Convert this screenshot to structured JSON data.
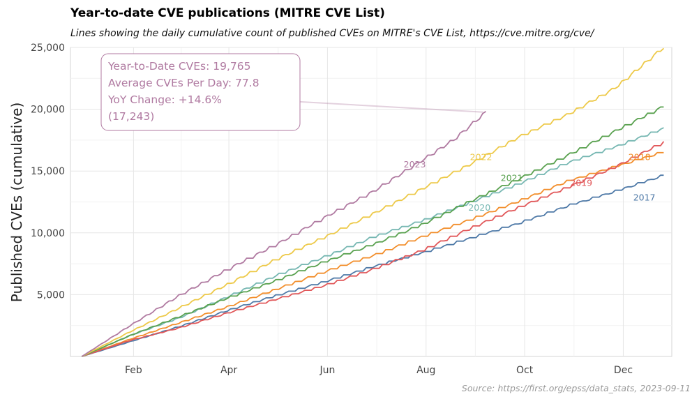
{
  "title": "Year-to-date CVE publications (MITRE CVE List)",
  "subtitle": "Lines showing the daily cumulative count of published CVEs on MITRE's CVE List, https://cve.mitre.org/cve/",
  "caption": "Source: https://first.org/epss/data_stats, 2023-09-11",
  "chart_data": {
    "type": "line",
    "ylabel": "Published CVEs (cumulative)",
    "xlabel": "",
    "ylim": [
      0,
      25000
    ],
    "xlim_day_of_year": [
      -7,
      365
    ],
    "grid": true,
    "legend": "inline labels",
    "yticks": [
      {
        "value": 5000,
        "label": "5,000"
      },
      {
        "value": 10000,
        "label": "10,000"
      },
      {
        "value": 15000,
        "label": "15,000"
      },
      {
        "value": 20000,
        "label": "20,000"
      },
      {
        "value": 25000,
        "label": "25,000"
      }
    ],
    "xticks": [
      {
        "day": 32,
        "label": "Feb"
      },
      {
        "day": 91,
        "label": "Apr"
      },
      {
        "day": 152,
        "label": "Jun"
      },
      {
        "day": 213,
        "label": "Aug"
      },
      {
        "day": 274,
        "label": "Oct"
      },
      {
        "day": 335,
        "label": "Dec"
      }
    ],
    "series": [
      {
        "name": "2017",
        "color": "#4e79a7",
        "label_pos": {
          "day": 348,
          "value": 12600
        },
        "days": [
          0,
          30,
          60,
          90,
          120,
          150,
          180,
          210,
          240,
          270,
          300,
          330,
          360
        ],
        "values": [
          0,
          1200,
          2400,
          3700,
          4900,
          6000,
          7200,
          8300,
          9500,
          10700,
          12100,
          13300,
          14600
        ]
      },
      {
        "name": "2018",
        "color": "#f28e2b",
        "label_pos": {
          "day": 345,
          "value": 15900
        },
        "days": [
          0,
          30,
          60,
          90,
          120,
          150,
          180,
          210,
          240,
          270,
          300,
          330,
          360
        ],
        "values": [
          0,
          1400,
          2700,
          4000,
          5400,
          6800,
          8100,
          9600,
          11000,
          12500,
          14100,
          15300,
          16500
        ]
      },
      {
        "name": "2019",
        "color": "#e15759",
        "label_pos": {
          "day": 309,
          "value": 13800
        },
        "days": [
          0,
          30,
          60,
          90,
          120,
          150,
          180,
          210,
          240,
          270,
          300,
          330,
          360
        ],
        "values": [
          0,
          1300,
          2300,
          3500,
          4600,
          5700,
          7000,
          8500,
          10300,
          12000,
          13600,
          15300,
          17300
        ]
      },
      {
        "name": "2020",
        "color": "#76b7b2",
        "label_pos": {
          "day": 246,
          "value": 11800
        },
        "days": [
          0,
          30,
          60,
          90,
          120,
          150,
          180,
          210,
          240,
          270,
          300,
          330,
          360
        ],
        "values": [
          0,
          1700,
          3100,
          4800,
          6500,
          8000,
          9600,
          10900,
          12400,
          13900,
          15600,
          16900,
          18400
        ]
      },
      {
        "name": "2021",
        "color": "#59a14f",
        "label_pos": {
          "day": 266,
          "value": 14200
        },
        "days": [
          0,
          30,
          60,
          90,
          120,
          150,
          180,
          210,
          240,
          270,
          300,
          330,
          360
        ],
        "values": [
          0,
          1700,
          3200,
          4700,
          6100,
          7600,
          9000,
          10600,
          12500,
          14300,
          16200,
          18200,
          20200
        ]
      },
      {
        "name": "2022",
        "color": "#edc948",
        "label_pos": {
          "day": 247,
          "value": 15900
        },
        "days": [
          0,
          30,
          60,
          90,
          120,
          150,
          180,
          210,
          240,
          270,
          300,
          330,
          360
        ],
        "values": [
          0,
          2000,
          3900,
          5800,
          7800,
          9600,
          11500,
          13500,
          15500,
          17700,
          19500,
          21700,
          25000
        ]
      },
      {
        "name": "2023",
        "color": "#b07aa1",
        "label_pos": {
          "day": 206,
          "value": 15300
        },
        "days": [
          0,
          30,
          60,
          90,
          120,
          150,
          180,
          210,
          230,
          250
        ],
        "values": [
          0,
          2500,
          4900,
          7000,
          9000,
          11200,
          13300,
          15800,
          17500,
          19765
        ]
      }
    ],
    "annotation": {
      "lines": [
        "Year-to-Date CVEs: 19,765",
        "Average CVEs Per Day: 77.8",
        "YoY Change: +14.6%",
        "(17,243)"
      ],
      "color": "#b07aa1",
      "points_to": {
        "day": 250,
        "value": 19765
      }
    }
  }
}
